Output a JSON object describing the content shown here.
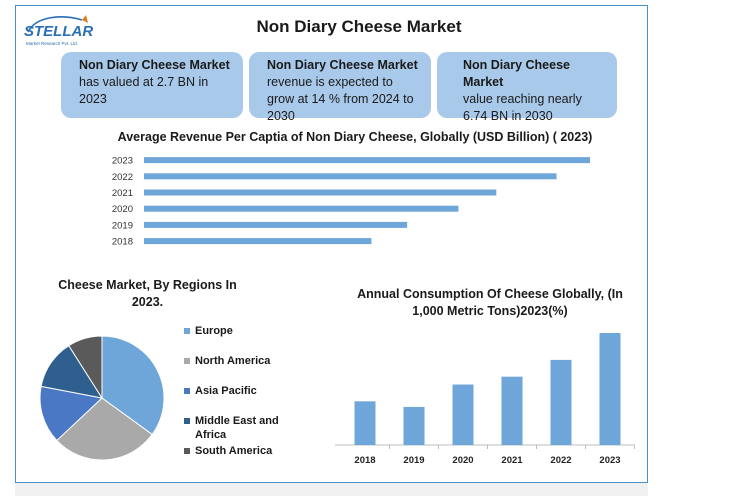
{
  "brand": {
    "name": "STELLAR",
    "tagline": "Market Research Pvt. Ltd."
  },
  "title": "Non Diary Cheese Market",
  "info_boxes": [
    {
      "lead": "Non Diary Cheese Market",
      "text": "has valued at 2.7 BN in 2023"
    },
    {
      "lead": "Non Diary Cheese Market",
      "text": "revenue is expected to grow at 14 % from 2024 to 2030"
    },
    {
      "lead": "Non Diary Cheese Market",
      "text": "value reaching nearly 6.74 BN in 2030"
    }
  ],
  "colors": {
    "bar": "#6ea6da",
    "info_box": "#a8c9ea",
    "frame": "#4a90c8"
  },
  "chart_data": [
    {
      "type": "bar",
      "orientation": "horizontal",
      "title": "Average Revenue Per Captia of Non Diary Cheese, Globally (USD Billion) ( 2023)",
      "categories": [
        "2023",
        "2022",
        "2021",
        "2020",
        "2019",
        "2018"
      ],
      "values": [
        100,
        92.5,
        79,
        70.5,
        59,
        51
      ],
      "xlim": [
        0,
        100
      ],
      "grid": false,
      "legend": "none"
    },
    {
      "type": "pie",
      "title": "Cheese Market, By Regions In 2023.",
      "labels": [
        "Europe",
        "North America",
        "Asia Pacific",
        "Middle East and Africa",
        "South America"
      ],
      "values": [
        35,
        28,
        15,
        13,
        9
      ],
      "colors": [
        "#6ea6da",
        "#a9a9a9",
        "#4a78c5",
        "#2f5f8f",
        "#5a5a5a"
      ],
      "legend": "right"
    },
    {
      "type": "bar",
      "title": "Annual Consumption Of Cheese Globally, (In 1,000 Metric Tons)2023(%)",
      "categories": [
        "2018",
        "2019",
        "2020",
        "2021",
        "2022",
        "2023"
      ],
      "values": [
        39,
        34,
        54,
        61,
        76,
        100
      ],
      "ylim": [
        0,
        100
      ],
      "grid": false,
      "legend": "none"
    }
  ]
}
